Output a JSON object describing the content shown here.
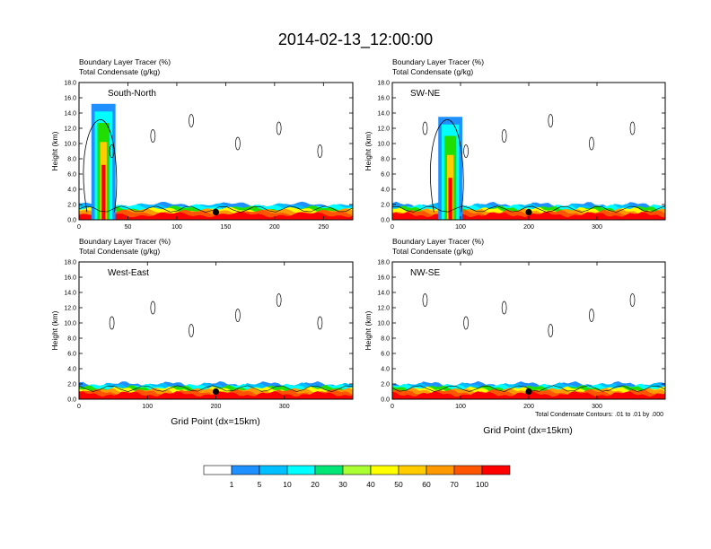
{
  "figure": {
    "title": "2014-02-13_12:00:00",
    "contour_note": "Total Condensate Contours: .01 to .01 by .000",
    "colorbar": {
      "labels": [
        "1",
        "5",
        "10",
        "20",
        "30",
        "40",
        "50",
        "60",
        "70",
        "100"
      ],
      "colors": [
        "#ffffff",
        "#1e90ff",
        "#00bfff",
        "#00ffff",
        "#00e676",
        "#22dd00",
        "#aaff33",
        "#ffff00",
        "#ffcc00",
        "#ff9900",
        "#ff5500",
        "#ff0000"
      ]
    }
  },
  "chart_data": [
    {
      "type": "heatmap",
      "label": "South-North",
      "line1": "Boundary Layer Tracer   (%)",
      "line2": "Total Condensate   (g/kg)",
      "ylabel": "Height (km)",
      "xlabel": "",
      "xlim": [
        0,
        280
      ],
      "ylim": [
        0,
        18
      ],
      "xticks": [
        "0",
        "50",
        "100",
        "150",
        "200",
        "250"
      ],
      "xtick_values": [
        0,
        50,
        100,
        150,
        200,
        250
      ],
      "yticks": [
        "0.0",
        "2.0",
        "4.0",
        "6.0",
        "8.0",
        "10.0",
        "12.0",
        "14.0",
        "16.0",
        "18.0"
      ],
      "marker_x": 140,
      "plume_center": 25,
      "boundary_layer_top_km": 1.8
    },
    {
      "type": "heatmap",
      "label": "SW-NE",
      "line1": "Boundary Layer Tracer   (%)",
      "line2": "Total Condensate   (g/kg)",
      "ylabel": "Height (km)",
      "xlabel": "",
      "xlim": [
        0,
        400
      ],
      "ylim": [
        0,
        18
      ],
      "xticks": [
        "0",
        "100",
        "200",
        "300"
      ],
      "xtick_values": [
        0,
        100,
        200,
        300
      ],
      "yticks": [
        "0.0",
        "2.0",
        "4.0",
        "6.0",
        "8.0",
        "10.0",
        "12.0",
        "14.0",
        "16.0",
        "18.0"
      ],
      "marker_x": 200,
      "plume_center": 85,
      "boundary_layer_top_km": 1.8
    },
    {
      "type": "heatmap",
      "label": "West-East",
      "line1": "Boundary Layer Tracer   (%)",
      "line2": "Total Condensate   (g/kg)",
      "ylabel": "Height (km)",
      "xlabel": "Grid Point (dx=15km)",
      "xlim": [
        0,
        400
      ],
      "ylim": [
        0,
        18
      ],
      "xticks": [
        "0",
        "100",
        "200",
        "300"
      ],
      "xtick_values": [
        0,
        100,
        200,
        300
      ],
      "yticks": [
        "0.0",
        "2.0",
        "4.0",
        "6.0",
        "8.0",
        "10.0",
        "12.0",
        "14.0",
        "16.0",
        "18.0"
      ],
      "marker_x": 200,
      "plume_center": null,
      "boundary_layer_top_km": 1.8
    },
    {
      "type": "heatmap",
      "label": "NW-SE",
      "line1": "Boundary Layer Tracer   (%)",
      "line2": "Total Condensate   (g/kg)",
      "ylabel": "Height (km)",
      "xlabel": "Grid Point (dx=15km)",
      "xlim": [
        0,
        400
      ],
      "ylim": [
        0,
        18
      ],
      "xticks": [
        "0",
        "100",
        "200",
        "300"
      ],
      "xtick_values": [
        0,
        100,
        200,
        300
      ],
      "yticks": [
        "0.0",
        "2.0",
        "4.0",
        "6.0",
        "8.0",
        "10.0",
        "12.0",
        "14.0",
        "16.0",
        "18.0"
      ],
      "marker_x": 200,
      "plume_center": null,
      "boundary_layer_top_km": 1.8
    }
  ]
}
